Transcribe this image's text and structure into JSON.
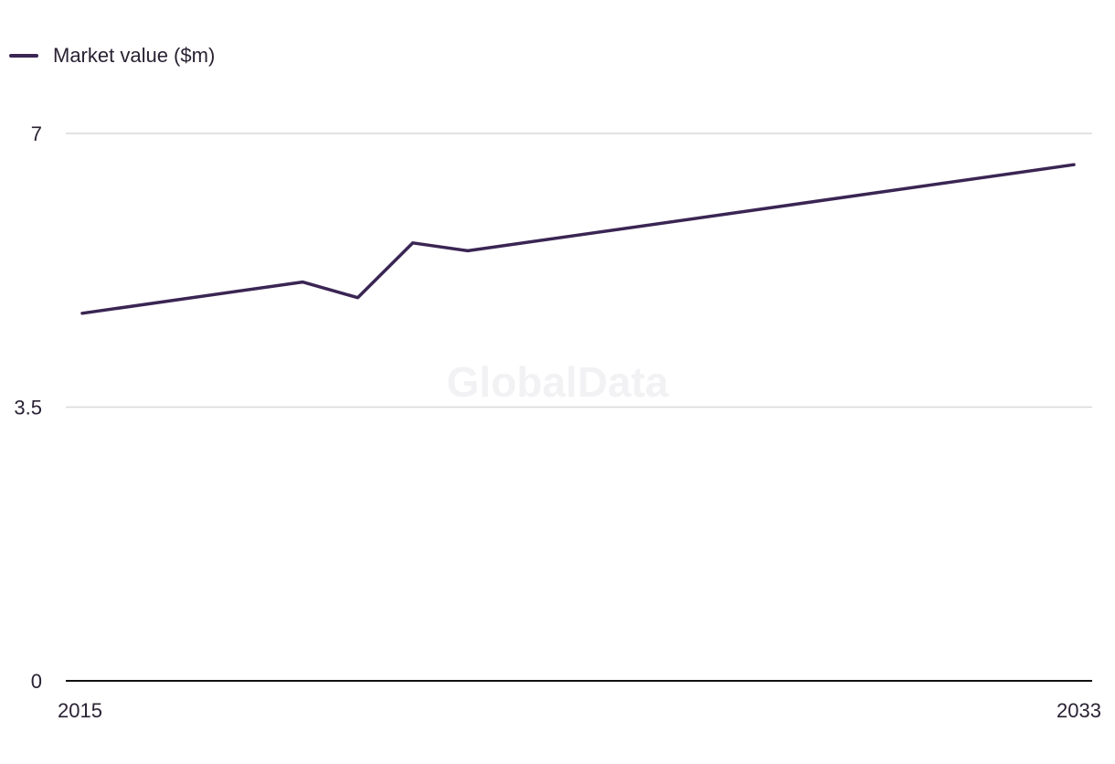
{
  "legend": {
    "label": "Market value ($m)"
  },
  "watermark": "GlobalData",
  "colors": {
    "series": "#3a2553",
    "grid": "#d9d9d9",
    "axis": "#111111"
  },
  "chart_data": {
    "type": "line",
    "title": "",
    "xlabel": "",
    "ylabel": "",
    "xlim": [
      2015,
      2033
    ],
    "ylim": [
      0,
      7
    ],
    "y_ticks": [
      0,
      3.5,
      7
    ],
    "y_tick_labels": [
      "0",
      "3.5",
      "7"
    ],
    "x_tick_labels": [
      "2015",
      "2033"
    ],
    "grid": true,
    "legend_position": "top-left",
    "series": [
      {
        "name": "Market value ($m)",
        "x": [
          2015,
          2019,
          2020,
          2021,
          2022,
          2033
        ],
        "values": [
          4.7,
          5.1,
          4.9,
          5.6,
          5.5,
          6.6
        ]
      }
    ]
  }
}
